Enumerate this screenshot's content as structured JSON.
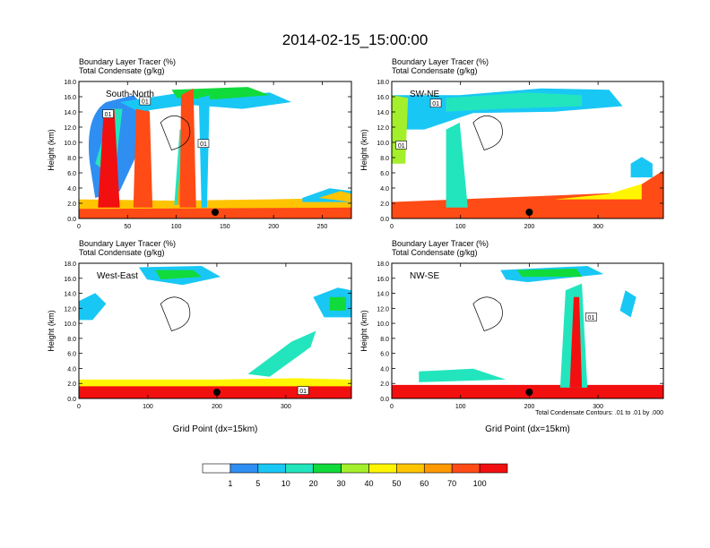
{
  "title": "2014-02-15_15:00:00",
  "colorbar": {
    "labels": [
      "1",
      "5",
      "10",
      "20",
      "30",
      "40",
      "50",
      "60",
      "70",
      "100"
    ],
    "colors": [
      "#ffffff",
      "#2f8ef2",
      "#19c7f5",
      "#22e5bd",
      "#11da3b",
      "#a4ef2b",
      "#fff500",
      "#ffc400",
      "#ff9900",
      "#ff4b16",
      "#f20f0f"
    ]
  },
  "contour_note": "Total Condensate Contours: .01 to .01 by .000",
  "chart_data": [
    {
      "type": "heatmap",
      "panel": "top-left",
      "subtitle_1": "Boundary Layer Tracer    (%)",
      "subtitle_2": "Total Condensate    (g/kg)",
      "label": "South-North",
      "ylabel": "Height (km)",
      "xlabel": "",
      "xlim": [
        0,
        280
      ],
      "ylim": [
        0,
        18
      ],
      "xticks": [
        "0",
        "50",
        "100",
        "150",
        "200",
        "250"
      ],
      "yticks": [
        "0.0",
        "2.0",
        "4.0",
        "6.0",
        "8.0",
        "10.0",
        "12.0",
        "14.0",
        "16.0",
        "18.0"
      ],
      "marker_x": 140,
      "contour_labels": [
        {
          "x": 30,
          "y": 13.7,
          "text": "01"
        },
        {
          "x": 68,
          "y": 15.4,
          "text": "01"
        },
        {
          "x": 128,
          "y": 9.8,
          "text": "01"
        }
      ]
    },
    {
      "type": "heatmap",
      "panel": "top-right",
      "subtitle_1": "Boundary Layer Tracer    (%)",
      "subtitle_2": "Total Condensate    (g/kg)",
      "label": "SW-NE",
      "ylabel": "Height (km)",
      "xlabel": "",
      "xlim": [
        0,
        395
      ],
      "ylim": [
        0,
        18
      ],
      "xticks": [
        "0",
        "100",
        "200",
        "300"
      ],
      "yticks": [
        "0.0",
        "2.0",
        "4.0",
        "6.0",
        "8.0",
        "10.0",
        "12.0",
        "14.0",
        "16.0",
        "18.0"
      ],
      "marker_x": 200,
      "contour_labels": [
        {
          "x": 14,
          "y": 9.6,
          "text": "01"
        },
        {
          "x": 64,
          "y": 15.1,
          "text": "01"
        }
      ]
    },
    {
      "type": "heatmap",
      "panel": "bottom-left",
      "subtitle_1": "Boundary Layer Tracer    (%)",
      "subtitle_2": "Total Condensate    (g/kg)",
      "label": "West-East",
      "ylabel": "Height (km)",
      "xlabel": "Grid Point (dx=15km)",
      "xlim": [
        0,
        395
      ],
      "ylim": [
        0,
        18
      ],
      "xticks": [
        "0",
        "100",
        "200",
        "300"
      ],
      "yticks": [
        "0.0",
        "2.0",
        "4.0",
        "6.0",
        "8.0",
        "10.0",
        "12.0",
        "14.0",
        "16.0",
        "18.0"
      ],
      "marker_x": 200,
      "contour_labels": [
        {
          "x": 325,
          "y": 1.0,
          "text": "01"
        }
      ]
    },
    {
      "type": "heatmap",
      "panel": "bottom-right",
      "subtitle_1": "Boundary Layer Tracer    (%)",
      "subtitle_2": "Total Condensate    (g/kg)",
      "label": "NW-SE",
      "ylabel": "Height (km)",
      "xlabel": "Grid Point (dx=15km)",
      "xlim": [
        0,
        395
      ],
      "ylim": [
        0,
        18
      ],
      "xticks": [
        "0",
        "100",
        "200",
        "300"
      ],
      "yticks": [
        "0.0",
        "2.0",
        "4.0",
        "6.0",
        "8.0",
        "10.0",
        "12.0",
        "14.0",
        "16.0",
        "18.0"
      ],
      "marker_x": 200,
      "contour_labels": [
        {
          "x": 290,
          "y": 10.8,
          "text": "01"
        }
      ]
    }
  ]
}
